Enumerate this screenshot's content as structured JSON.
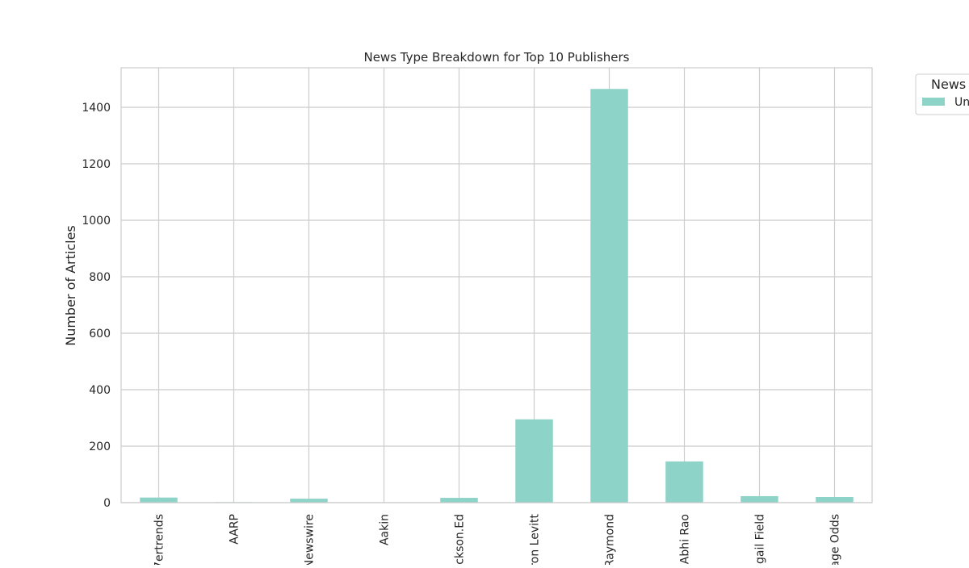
{
  "chart_data": {
    "type": "bar",
    "title": "News Type Breakdown for Top 10 Publishers",
    "xlabel": "",
    "ylabel": "Number of Articles",
    "categories": [
      "7ertrends",
      "AARP",
      "Newswire",
      "Aakin",
      "ckson.Ed",
      "ron Levitt",
      "Raymond",
      "Abhi Rao",
      "gail Field",
      "age Odds"
    ],
    "series": [
      {
        "name": "Un",
        "values": [
          18,
          2,
          14,
          1,
          17,
          295,
          1465,
          146,
          23,
          20
        ]
      }
    ],
    "ylim": [
      0,
      1540
    ],
    "yticks": [
      0,
      200,
      400,
      600,
      800,
      1000,
      1200,
      1400
    ],
    "grid": true,
    "legend": {
      "title": "News",
      "placement": "top-right outside"
    },
    "colors": {
      "bar": "#8dd3c7",
      "grid": "#cccccc",
      "frame": "#cccccc",
      "text": "#262626"
    }
  }
}
